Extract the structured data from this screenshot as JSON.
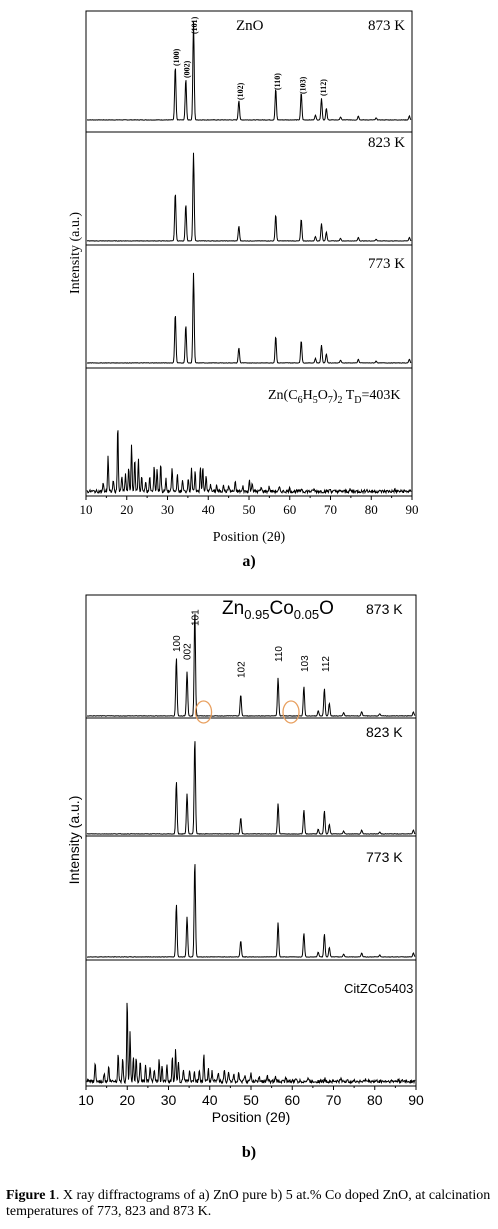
{
  "chart_data": [
    {
      "type": "line",
      "panel_label": "a)",
      "title": "ZnO",
      "xlabel": "Position (2θ)",
      "ylabel": "Intensity (a.u.)",
      "xlim": [
        10,
        90
      ],
      "xticks": [
        "10",
        "20",
        "30",
        "40",
        "50",
        "60",
        "70",
        "80",
        "90"
      ],
      "grid": false,
      "series": [
        {
          "name": "873 K",
          "peaks": [
            [
              31.8,
              0.55
            ],
            [
              34.4,
              0.42
            ],
            [
              36.3,
              1.0
            ],
            [
              47.5,
              0.2
            ],
            [
              56.6,
              0.32
            ],
            [
              62.9,
              0.28
            ],
            [
              66.4,
              0.05
            ],
            [
              67.9,
              0.22
            ],
            [
              69.1,
              0.12
            ],
            [
              72.6,
              0.03
            ],
            [
              77.0,
              0.04
            ],
            [
              81.4,
              0.02
            ],
            [
              89.6,
              0.04
            ]
          ]
        },
        {
          "name": "823 K",
          "peaks": [
            [
              31.8,
              0.55
            ],
            [
              34.4,
              0.42
            ],
            [
              36.3,
              1.0
            ],
            [
              47.5,
              0.17
            ],
            [
              56.6,
              0.3
            ],
            [
              62.9,
              0.25
            ],
            [
              66.4,
              0.05
            ],
            [
              67.9,
              0.2
            ],
            [
              69.1,
              0.1
            ],
            [
              72.6,
              0.03
            ],
            [
              77.0,
              0.04
            ],
            [
              81.4,
              0.02
            ],
            [
              89.6,
              0.04
            ]
          ]
        },
        {
          "name": "773 K",
          "peaks": [
            [
              31.8,
              0.55
            ],
            [
              34.4,
              0.42
            ],
            [
              36.3,
              1.0
            ],
            [
              47.5,
              0.17
            ],
            [
              56.6,
              0.3
            ],
            [
              62.9,
              0.25
            ],
            [
              66.4,
              0.05
            ],
            [
              67.9,
              0.2
            ],
            [
              69.1,
              0.1
            ],
            [
              72.6,
              0.03
            ],
            [
              77.0,
              0.04
            ],
            [
              81.4,
              0.02
            ],
            [
              89.6,
              0.04
            ]
          ]
        },
        {
          "name": "Zn(C6H5O7)2 TD=403K",
          "peaks": [
            [
              14.0,
              0.1
            ],
            [
              15.2,
              0.45
            ],
            [
              16.5,
              0.15
            ],
            [
              17.6,
              0.85
            ],
            [
              18.6,
              0.2
            ],
            [
              19.5,
              0.22
            ],
            [
              20.3,
              0.3
            ],
            [
              21.0,
              0.58
            ],
            [
              21.8,
              0.42
            ],
            [
              22.7,
              0.4
            ],
            [
              23.5,
              0.2
            ],
            [
              24.5,
              0.12
            ],
            [
              25.5,
              0.18
            ],
            [
              26.6,
              0.32
            ],
            [
              27.3,
              0.28
            ],
            [
              28.2,
              0.36
            ],
            [
              29.5,
              0.15
            ],
            [
              31.0,
              0.3
            ],
            [
              32.3,
              0.22
            ],
            [
              33.6,
              0.14
            ],
            [
              35.0,
              0.18
            ],
            [
              35.8,
              0.3
            ],
            [
              36.7,
              0.24
            ],
            [
              38.0,
              0.32
            ],
            [
              38.6,
              0.3
            ],
            [
              39.4,
              0.2
            ],
            [
              40.5,
              0.1
            ],
            [
              42.0,
              0.08
            ],
            [
              43.7,
              0.1
            ],
            [
              45.0,
              0.08
            ],
            [
              46.6,
              0.12
            ],
            [
              48.5,
              0.06
            ],
            [
              50.1,
              0.14
            ],
            [
              50.8,
              0.12
            ],
            [
              53.0,
              0.05
            ],
            [
              55.0,
              0.06
            ],
            [
              57.5,
              0.05
            ],
            [
              60.0,
              0.04
            ],
            [
              63.0,
              0.04
            ],
            [
              66.0,
              0.03
            ],
            [
              70.0,
              0.03
            ],
            [
              75.0,
              0.02
            ],
            [
              79.0,
              0.03
            ],
            [
              86.0,
              0.02
            ]
          ]
        }
      ],
      "peak_labels": [
        {
          "hkl": "(100)",
          "x": 31.8
        },
        {
          "hkl": "(002)",
          "x": 34.4
        },
        {
          "hkl": "(101)",
          "x": 36.3
        },
        {
          "hkl": "(102)",
          "x": 47.5
        },
        {
          "hkl": "(110)",
          "x": 56.6
        },
        {
          "hkl": "(103)",
          "x": 62.9
        },
        {
          "hkl": "(112)",
          "x": 67.9
        }
      ]
    },
    {
      "type": "line",
      "panel_label": "b)",
      "title_parts": [
        "Zn",
        "0.95",
        "Co",
        "0.05",
        "O"
      ],
      "xlabel": "Position (2θ)",
      "ylabel": "Intensity (a.u.)",
      "xlim": [
        10,
        90
      ],
      "xticks": [
        "10",
        "20",
        "30",
        "40",
        "50",
        "60",
        "70",
        "80",
        "90"
      ],
      "grid": false,
      "series": [
        {
          "name": "873 K",
          "peaks": [
            [
              31.8,
              0.55
            ],
            [
              34.4,
              0.42
            ],
            [
              36.3,
              1.0
            ],
            [
              47.5,
              0.2
            ],
            [
              56.6,
              0.36
            ],
            [
              62.9,
              0.28
            ],
            [
              66.4,
              0.05
            ],
            [
              67.9,
              0.26
            ],
            [
              69.1,
              0.12
            ],
            [
              72.6,
              0.03
            ],
            [
              77.0,
              0.04
            ],
            [
              81.4,
              0.02
            ],
            [
              89.6,
              0.04
            ]
          ]
        },
        {
          "name": "823 K",
          "peaks": [
            [
              31.8,
              0.55
            ],
            [
              34.4,
              0.42
            ],
            [
              36.3,
              1.0
            ],
            [
              47.5,
              0.17
            ],
            [
              56.6,
              0.32
            ],
            [
              62.9,
              0.25
            ],
            [
              66.4,
              0.05
            ],
            [
              67.9,
              0.24
            ],
            [
              69.1,
              0.1
            ],
            [
              72.6,
              0.03
            ],
            [
              77.0,
              0.04
            ],
            [
              81.4,
              0.02
            ],
            [
              89.6,
              0.04
            ]
          ]
        },
        {
          "name": "773 K",
          "peaks": [
            [
              31.8,
              0.55
            ],
            [
              34.4,
              0.42
            ],
            [
              36.3,
              1.0
            ],
            [
              47.5,
              0.17
            ],
            [
              56.6,
              0.36
            ],
            [
              62.9,
              0.25
            ],
            [
              66.4,
              0.05
            ],
            [
              67.9,
              0.24
            ],
            [
              69.1,
              0.1
            ],
            [
              72.6,
              0.03
            ],
            [
              77.0,
              0.04
            ],
            [
              81.4,
              0.02
            ],
            [
              89.6,
              0.04
            ]
          ]
        },
        {
          "name": "CitZCo5403",
          "peaks": [
            [
              12.0,
              0.22
            ],
            [
              14.2,
              0.1
            ],
            [
              15.3,
              0.18
            ],
            [
              17.6,
              0.35
            ],
            [
              18.7,
              0.3
            ],
            [
              19.8,
              1.0
            ],
            [
              20.5,
              0.6
            ],
            [
              21.3,
              0.3
            ],
            [
              22.0,
              0.28
            ],
            [
              23.0,
              0.25
            ],
            [
              24.3,
              0.2
            ],
            [
              25.4,
              0.18
            ],
            [
              26.4,
              0.15
            ],
            [
              27.6,
              0.26
            ],
            [
              28.3,
              0.2
            ],
            [
              29.5,
              0.22
            ],
            [
              30.8,
              0.3
            ],
            [
              31.6,
              0.38
            ],
            [
              32.3,
              0.25
            ],
            [
              33.5,
              0.15
            ],
            [
              35.0,
              0.14
            ],
            [
              36.2,
              0.12
            ],
            [
              37.4,
              0.14
            ],
            [
              38.5,
              0.34
            ],
            [
              39.6,
              0.16
            ],
            [
              40.5,
              0.12
            ],
            [
              42.0,
              0.1
            ],
            [
              43.5,
              0.14
            ],
            [
              44.5,
              0.12
            ],
            [
              45.8,
              0.1
            ],
            [
              47.0,
              0.12
            ],
            [
              48.5,
              0.08
            ],
            [
              50.0,
              0.1
            ],
            [
              52.0,
              0.06
            ],
            [
              54.0,
              0.06
            ],
            [
              56.0,
              0.05
            ],
            [
              58.5,
              0.05
            ],
            [
              61.0,
              0.04
            ],
            [
              64.0,
              0.04
            ],
            [
              68.0,
              0.03
            ],
            [
              72.0,
              0.03
            ],
            [
              78.0,
              0.02
            ],
            [
              86.0,
              0.02
            ]
          ]
        }
      ],
      "peak_labels": [
        {
          "hkl": "100",
          "x": 31.8
        },
        {
          "hkl": "002",
          "x": 34.4
        },
        {
          "hkl": "101",
          "x": 36.3
        },
        {
          "hkl": "102",
          "x": 47.5
        },
        {
          "hkl": "110",
          "x": 56.6
        },
        {
          "hkl": "103",
          "x": 62.9
        },
        {
          "hkl": "112",
          "x": 67.9
        }
      ],
      "highlight_markers": [
        {
          "x": 38.5
        },
        {
          "x": 59.7
        }
      ],
      "highlight_color": "#e8a060"
    }
  ],
  "panel_a_temp_labels": [
    "873 K",
    "823 K",
    "773 K"
  ],
  "panel_a_precursor": {
    "base": "Zn(C",
    "sub1": "6",
    "mid1": "H",
    "sub2": "5",
    "mid2": "O",
    "sub3": "7",
    "mid3": ")",
    "sub4": "2",
    "mid4": " T",
    "sub5": "D",
    "end": "=403K"
  },
  "panel_b_temp_labels": [
    "873 K",
    "823 K",
    "773 K"
  ],
  "panel_b_precursor": "CitZCo5403",
  "caption": {
    "bold": "Figure 1",
    "text": ". X ray diffractograms of a) ZnO pure b) 5 at.% Co doped ZnO, at calcination temperatures of 773, 823 and 873 K."
  }
}
